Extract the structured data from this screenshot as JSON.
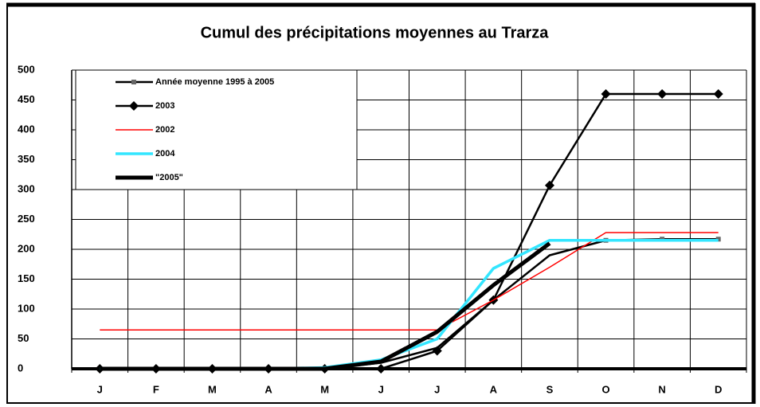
{
  "chart_data": {
    "type": "line",
    "title": "Cumul des précipitations moyennes au Trarza",
    "categories": [
      "J",
      "F",
      "M",
      "A",
      "M",
      "J",
      "J",
      "A",
      "S",
      "O",
      "N",
      "D"
    ],
    "ylim": [
      0,
      500
    ],
    "yticks": [
      0,
      50,
      100,
      150,
      200,
      250,
      300,
      350,
      400,
      450,
      500
    ],
    "grid": true,
    "series": [
      {
        "name": "Année moyenne 1995 à 2005",
        "color": "#000000",
        "values": [
          0,
          0,
          0,
          0,
          0,
          10,
          35,
          115,
          190,
          215,
          217,
          217
        ]
      },
      {
        "name": "2003",
        "color": "#000000",
        "values": [
          0,
          0,
          0,
          0,
          0,
          0,
          30,
          115,
          307,
          460,
          460,
          460
        ]
      },
      {
        "name": "2002",
        "color": "#ff0000",
        "values": [
          65,
          65,
          65,
          65,
          65,
          65,
          65,
          115,
          170,
          228,
          228,
          228
        ]
      },
      {
        "name": "2004",
        "color": "#33e6ff",
        "values": [
          0,
          0,
          0,
          0,
          2,
          15,
          50,
          168,
          215,
          215,
          215,
          215
        ]
      },
      {
        "name": "\"2005\"",
        "color": "#000000",
        "values": [
          0,
          0,
          0,
          0,
          0,
          12,
          62,
          140,
          210,
          null,
          null,
          null
        ]
      }
    ]
  }
}
